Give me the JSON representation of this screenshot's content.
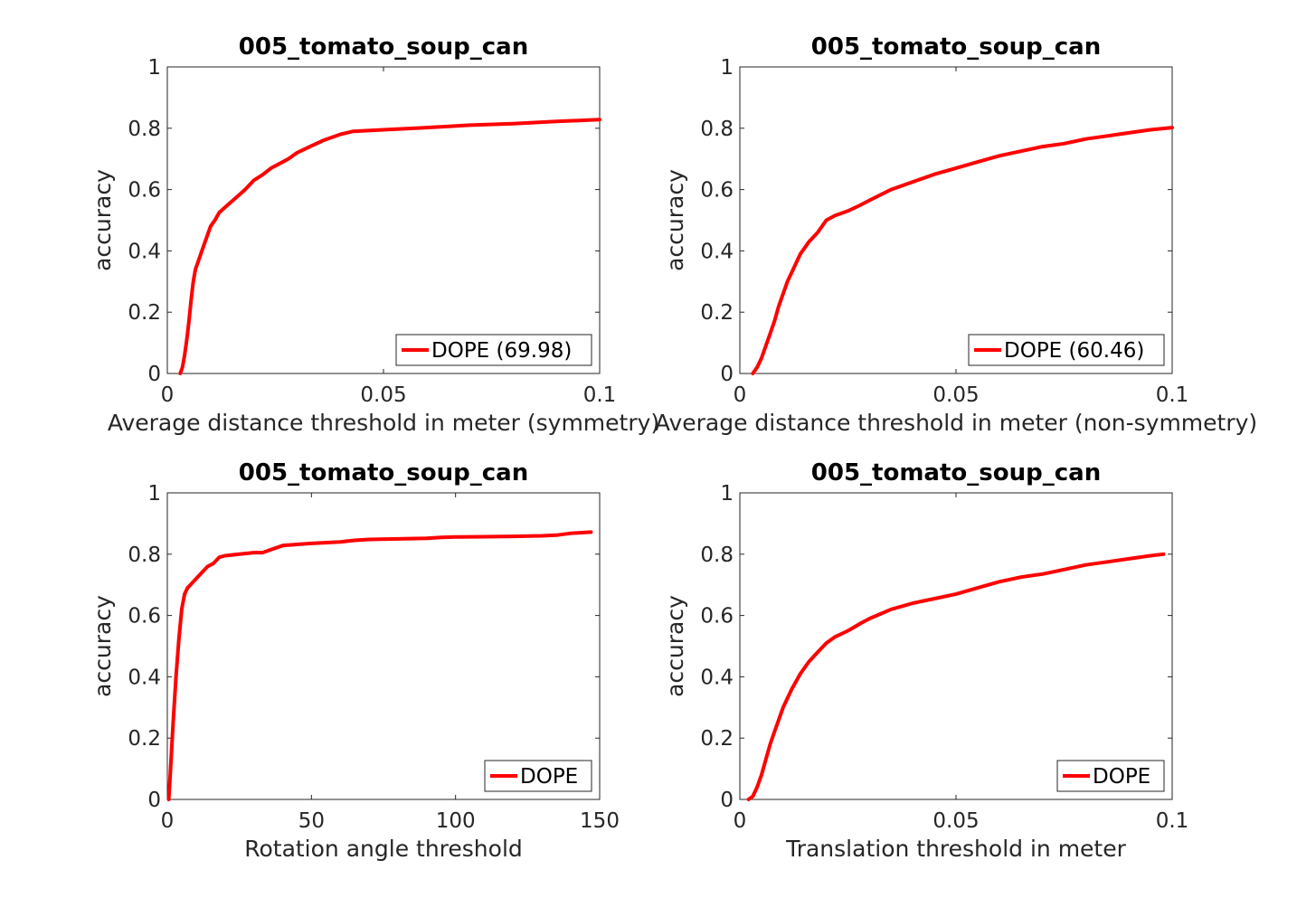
{
  "figure": {
    "line_color": "#ff0000",
    "axis_color": "#262626",
    "background": "#ffffff"
  },
  "chart_data": [
    {
      "type": "line",
      "title": "005_tomato_soup_can",
      "xlabel": "Average distance threshold in meter (symmetry)",
      "ylabel": "accuracy",
      "xlim": [
        0,
        0.1
      ],
      "ylim": [
        0,
        1
      ],
      "xticks": [
        "0",
        "0.05",
        "0.1"
      ],
      "yticks": [
        "0",
        "0.2",
        "0.4",
        "0.6",
        "0.8",
        "1"
      ],
      "legend_position": "bottom-right",
      "series": [
        {
          "name": "DOPE (69.98)",
          "x": [
            0.003,
            0.0035,
            0.004,
            0.0045,
            0.005,
            0.0055,
            0.006,
            0.0065,
            0.007,
            0.008,
            0.009,
            0.01,
            0.011,
            0.012,
            0.014,
            0.016,
            0.018,
            0.02,
            0.022,
            0.024,
            0.026,
            0.028,
            0.03,
            0.033,
            0.036,
            0.04,
            0.043,
            0.05,
            0.06,
            0.07,
            0.08,
            0.09,
            0.1
          ],
          "y": [
            0.0,
            0.02,
            0.06,
            0.11,
            0.17,
            0.24,
            0.3,
            0.34,
            0.36,
            0.4,
            0.44,
            0.48,
            0.5,
            0.525,
            0.55,
            0.575,
            0.6,
            0.63,
            0.648,
            0.67,
            0.685,
            0.7,
            0.72,
            0.74,
            0.76,
            0.78,
            0.79,
            0.795,
            0.802,
            0.81,
            0.815,
            0.822,
            0.828
          ]
        }
      ]
    },
    {
      "type": "line",
      "title": "005_tomato_soup_can",
      "xlabel": "Average distance threshold in meter (non-symmetry)",
      "ylabel": "accuracy",
      "xlim": [
        0,
        0.1
      ],
      "ylim": [
        0,
        1
      ],
      "xticks": [
        "0",
        "0.05",
        "0.1"
      ],
      "yticks": [
        "0",
        "0.2",
        "0.4",
        "0.6",
        "0.8",
        "1"
      ],
      "legend_position": "bottom-right",
      "series": [
        {
          "name": "DOPE (60.46)",
          "x": [
            0.003,
            0.004,
            0.005,
            0.006,
            0.007,
            0.008,
            0.009,
            0.01,
            0.011,
            0.012,
            0.014,
            0.016,
            0.018,
            0.02,
            0.022,
            0.025,
            0.028,
            0.03,
            0.035,
            0.04,
            0.045,
            0.05,
            0.055,
            0.06,
            0.065,
            0.07,
            0.075,
            0.08,
            0.085,
            0.09,
            0.095,
            0.1
          ],
          "y": [
            0.0,
            0.02,
            0.05,
            0.09,
            0.13,
            0.17,
            0.22,
            0.26,
            0.3,
            0.33,
            0.39,
            0.43,
            0.46,
            0.5,
            0.515,
            0.53,
            0.55,
            0.565,
            0.6,
            0.625,
            0.65,
            0.67,
            0.69,
            0.71,
            0.725,
            0.74,
            0.75,
            0.765,
            0.775,
            0.785,
            0.795,
            0.802
          ]
        }
      ]
    },
    {
      "type": "line",
      "title": "005_tomato_soup_can",
      "xlabel": "Rotation angle threshold",
      "ylabel": "accuracy",
      "xlim": [
        0,
        150
      ],
      "ylim": [
        0,
        1
      ],
      "xticks": [
        "0",
        "50",
        "100",
        "150"
      ],
      "yticks": [
        "0",
        "0.2",
        "0.4",
        "0.6",
        "0.8",
        "1"
      ],
      "legend_position": "bottom-right",
      "series": [
        {
          "name": "DOPE",
          "x": [
            0.5,
            1,
            2,
            3,
            4,
            5,
            6,
            7,
            8,
            10,
            12,
            14,
            16,
            18,
            20,
            25,
            30,
            33,
            36,
            40,
            45,
            50,
            60,
            65,
            70,
            80,
            90,
            95,
            100,
            110,
            120,
            130,
            135,
            140,
            147
          ],
          "y": [
            0.0,
            0.08,
            0.25,
            0.4,
            0.52,
            0.62,
            0.67,
            0.69,
            0.7,
            0.72,
            0.74,
            0.76,
            0.77,
            0.79,
            0.795,
            0.8,
            0.805,
            0.805,
            0.815,
            0.828,
            0.832,
            0.835,
            0.84,
            0.845,
            0.848,
            0.85,
            0.852,
            0.855,
            0.856,
            0.857,
            0.858,
            0.86,
            0.862,
            0.868,
            0.872
          ]
        }
      ]
    },
    {
      "type": "line",
      "title": "005_tomato_soup_can",
      "xlabel": "Translation threshold in meter",
      "ylabel": "accuracy",
      "xlim": [
        0,
        0.1
      ],
      "ylim": [
        0,
        1
      ],
      "xticks": [
        "0",
        "0.05",
        "0.1"
      ],
      "yticks": [
        "0",
        "0.2",
        "0.4",
        "0.6",
        "0.8",
        "1"
      ],
      "legend_position": "bottom-right",
      "series": [
        {
          "name": "DOPE",
          "x": [
            0.002,
            0.003,
            0.004,
            0.005,
            0.006,
            0.007,
            0.008,
            0.009,
            0.01,
            0.011,
            0.012,
            0.014,
            0.016,
            0.018,
            0.02,
            0.022,
            0.025,
            0.028,
            0.03,
            0.035,
            0.04,
            0.045,
            0.05,
            0.055,
            0.06,
            0.065,
            0.07,
            0.075,
            0.08,
            0.085,
            0.09,
            0.095,
            0.098
          ],
          "y": [
            0.0,
            0.01,
            0.04,
            0.08,
            0.13,
            0.18,
            0.22,
            0.26,
            0.3,
            0.33,
            0.36,
            0.41,
            0.45,
            0.48,
            0.51,
            0.53,
            0.55,
            0.575,
            0.59,
            0.62,
            0.64,
            0.655,
            0.67,
            0.69,
            0.71,
            0.725,
            0.735,
            0.75,
            0.765,
            0.775,
            0.785,
            0.795,
            0.8
          ]
        }
      ]
    }
  ]
}
